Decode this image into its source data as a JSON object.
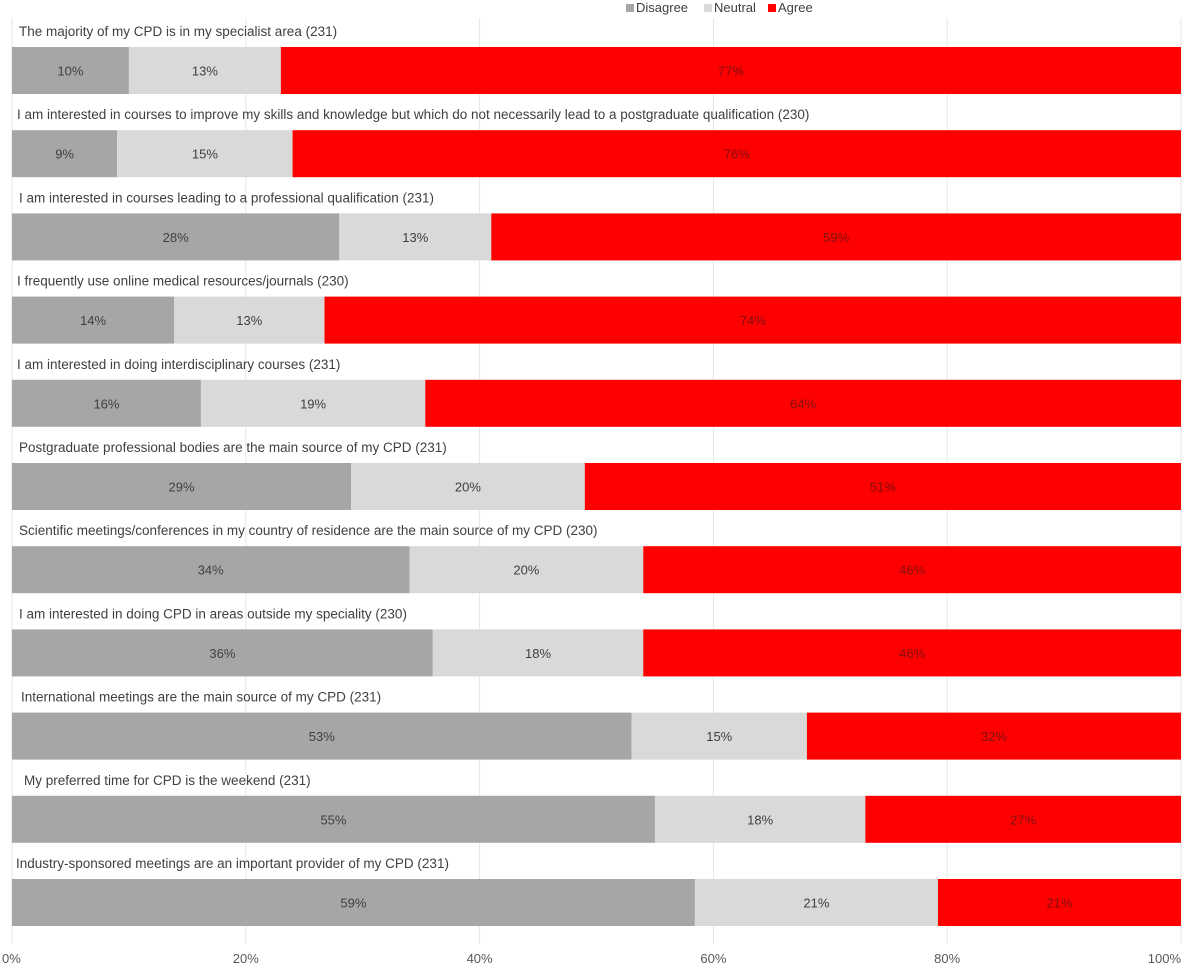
{
  "chart_data": {
    "type": "bar",
    "orientation": "horizontal",
    "stacked": "100%",
    "legend": {
      "position": "top-center",
      "entries": [
        "Disagree",
        "Neutral",
        "Agree"
      ]
    },
    "series": [
      {
        "name": "Disagree",
        "color": "#a6a6a6"
      },
      {
        "name": "Neutral",
        "color": "#d9d9d9"
      },
      {
        "name": "Agree",
        "color": "#ff0000"
      }
    ],
    "categories": [
      "The majority of my CPD is in my specialist area  (231)",
      "I am interested in courses to improve my skills and knowledge but which do not necessarily lead to a postgraduate qualification  (230)",
      "I am interested in courses leading to a professional qualification  (231)",
      "I frequently use online medical resources/journals (230)",
      "I am interested in doing interdisciplinary courses  (231)",
      "Postgraduate professional bodies are the main source of my CPD  (231)",
      "Scientific meetings/conferences in my country of residence are the main source of my CPD  (230)",
      "I am interested in doing CPD in areas outside my speciality  (230)",
      "International meetings are the main source of my CPD  (231)",
      "My preferred time for CPD is the weekend  (231)",
      "Industry-sponsored meetings are an important provider of my CPD (231)"
    ],
    "values": [
      [
        10,
        13,
        77
      ],
      [
        9,
        15,
        76
      ],
      [
        28,
        13,
        59
      ],
      [
        14,
        13,
        74
      ],
      [
        16,
        19,
        64
      ],
      [
        29,
        20,
        51
      ],
      [
        34,
        20,
        46
      ],
      [
        36,
        18,
        46
      ],
      [
        53,
        15,
        32
      ],
      [
        55,
        18,
        27
      ],
      [
        59,
        21,
        21
      ]
    ],
    "value_labels": [
      [
        "10%",
        "13%",
        "77%"
      ],
      [
        "9%",
        "15%",
        "76%"
      ],
      [
        "28%",
        "13%",
        "59%"
      ],
      [
        "14%",
        "13%",
        "74%"
      ],
      [
        "16%",
        "19%",
        "64%"
      ],
      [
        "29%",
        "20%",
        "51%"
      ],
      [
        "34%",
        "20%",
        "46%"
      ],
      [
        "36%",
        "18%",
        "46%"
      ],
      [
        "53%",
        "15%",
        "32%"
      ],
      [
        "55%",
        "18%",
        "27%"
      ],
      [
        "59%",
        "21%",
        "21%"
      ]
    ],
    "xlim": [
      0,
      100
    ],
    "xticks": [
      "0%",
      "20%",
      "40%",
      "60%",
      "80%",
      "100%"
    ],
    "grid": true
  }
}
